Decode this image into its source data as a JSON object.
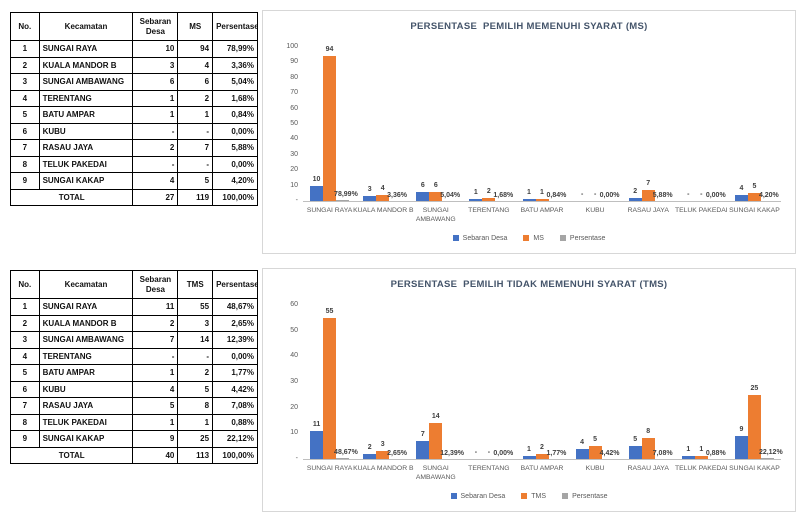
{
  "colors": {
    "series_blue": "#4472C4",
    "series_orange": "#ED7D31",
    "series_gray": "#A5A5A5",
    "title_text": "#44546A",
    "axis_text": "#595959",
    "table_border": "#000000"
  },
  "tables": [
    {
      "name": "ms-table",
      "headers": [
        "No.",
        "Kecamatan",
        "Sebaran Desa",
        "MS",
        "Persentase"
      ],
      "rows": [
        [
          "1",
          "SUNGAI RAYA",
          "10",
          "94",
          "78,99%"
        ],
        [
          "2",
          "KUALA MANDOR B",
          "3",
          "4",
          "3,36%"
        ],
        [
          "3",
          "SUNGAI AMBAWANG",
          "6",
          "6",
          "5,04%"
        ],
        [
          "4",
          "TERENTANG",
          "1",
          "2",
          "1,68%"
        ],
        [
          "5",
          "BATU AMPAR",
          "1",
          "1",
          "0,84%"
        ],
        [
          "6",
          "KUBU",
          "-",
          "-",
          "0,00%"
        ],
        [
          "7",
          "RASAU JAYA",
          "2",
          "7",
          "5,88%"
        ],
        [
          "8",
          "TELUK PAKEDAI",
          "-",
          "-",
          "0,00%"
        ],
        [
          "9",
          "SUNGAI KAKAP",
          "4",
          "5",
          "4,20%"
        ]
      ],
      "total": [
        "TOTAL",
        "27",
        "119",
        "100,00%"
      ]
    },
    {
      "name": "tms-table",
      "headers": [
        "No.",
        "Kecamatan",
        "Sebaran Desa",
        "TMS",
        "Persentase"
      ],
      "rows": [
        [
          "1",
          "SUNGAI RAYA",
          "11",
          "55",
          "48,67%"
        ],
        [
          "2",
          "KUALA MANDOR B",
          "2",
          "3",
          "2,65%"
        ],
        [
          "3",
          "SUNGAI AMBAWANG",
          "7",
          "14",
          "12,39%"
        ],
        [
          "4",
          "TERENTANG",
          "-",
          "-",
          "0,00%"
        ],
        [
          "5",
          "BATU AMPAR",
          "1",
          "2",
          "1,77%"
        ],
        [
          "6",
          "KUBU",
          "4",
          "5",
          "4,42%"
        ],
        [
          "7",
          "RASAU JAYA",
          "5",
          "8",
          "7,08%"
        ],
        [
          "8",
          "TELUK PAKEDAI",
          "1",
          "1",
          "0,88%"
        ],
        [
          "9",
          "SUNGAI KAKAP",
          "9",
          "25",
          "22,12%"
        ]
      ],
      "total": [
        "TOTAL",
        "40",
        "113",
        "100,00%"
      ]
    }
  ],
  "chart_data": [
    {
      "type": "bar",
      "title": "PERSENTASE  PEMILIH MEMENUHI SYARAT (MS)",
      "categories": [
        "SUNGAI RAYA",
        "KUALA MANDOR B",
        "SUNGAI AMBAWANG",
        "TERENTANG",
        "BATU AMPAR",
        "KUBU",
        "RASAU JAYA",
        "TELUK PAKEDAI",
        "SUNGAI KAKAP"
      ],
      "series": [
        {
          "name": "Sebaran Desa",
          "color": "#4472C4",
          "values": [
            10,
            3,
            6,
            1,
            1,
            0,
            2,
            0,
            4
          ],
          "labels": [
            "10",
            "3",
            "6",
            "1",
            "1",
            "-",
            "2",
            "-",
            "4"
          ]
        },
        {
          "name": "MS",
          "color": "#ED7D31",
          "values": [
            94,
            4,
            6,
            2,
            1,
            0,
            7,
            0,
            5
          ],
          "labels": [
            "94",
            "4",
            "6",
            "2",
            "1",
            "-",
            "7",
            "-",
            "5"
          ]
        },
        {
          "name": "Persentase",
          "color": "#A5A5A5",
          "values": [
            0.7899,
            0.0336,
            0.0504,
            0.0168,
            0.0084,
            0,
            0.0588,
            0,
            0.042
          ],
          "labels": [
            "78,99%",
            "3,36%",
            "5,04%",
            "1,68%",
            "0,84%",
            "0,00%",
            "5,88%",
            "0,00%",
            "4,20%"
          ]
        }
      ],
      "ylim": [
        0,
        100
      ],
      "yticks": [
        "100",
        "90",
        "80",
        "70",
        "60",
        "50",
        "40",
        "30",
        "20",
        "10",
        "-"
      ],
      "grid": false,
      "legend_position": "bottom"
    },
    {
      "type": "bar",
      "title": "PERSENTASE  PEMILIH TIDAK MEMENUHI SYARAT (TMS)",
      "categories": [
        "SUNGAI RAYA",
        "KUALA MANDOR B",
        "SUNGAI AMBAWANG",
        "TERENTANG",
        "BATU AMPAR",
        "KUBU",
        "RASAU JAYA",
        "TELUK PAKEDAI",
        "SUNGAI KAKAP"
      ],
      "series": [
        {
          "name": "Sebaran Desa",
          "color": "#4472C4",
          "values": [
            11,
            2,
            7,
            0,
            1,
            4,
            5,
            1,
            9
          ],
          "labels": [
            "11",
            "2",
            "7",
            "-",
            "1",
            "4",
            "5",
            "1",
            "9"
          ]
        },
        {
          "name": "TMS",
          "color": "#ED7D31",
          "values": [
            55,
            3,
            14,
            0,
            2,
            5,
            8,
            1,
            25
          ],
          "labels": [
            "55",
            "3",
            "14",
            "-",
            "2",
            "5",
            "8",
            "1",
            "25"
          ]
        },
        {
          "name": "Persentase",
          "color": "#A5A5A5",
          "values": [
            0.4867,
            0.0265,
            0.1239,
            0,
            0.0177,
            0.0442,
            0.0708,
            0.0088,
            0.2212
          ],
          "labels": [
            "48,67%",
            "2,65%",
            "12,39%",
            "0,00%",
            "1,77%",
            "4,42%",
            "7,08%",
            "0,88%",
            "22,12%"
          ]
        }
      ],
      "ylim": [
        0,
        60
      ],
      "yticks": [
        "60",
        "50",
        "40",
        "30",
        "20",
        "10",
        "-"
      ],
      "grid": false,
      "legend_position": "bottom"
    }
  ]
}
